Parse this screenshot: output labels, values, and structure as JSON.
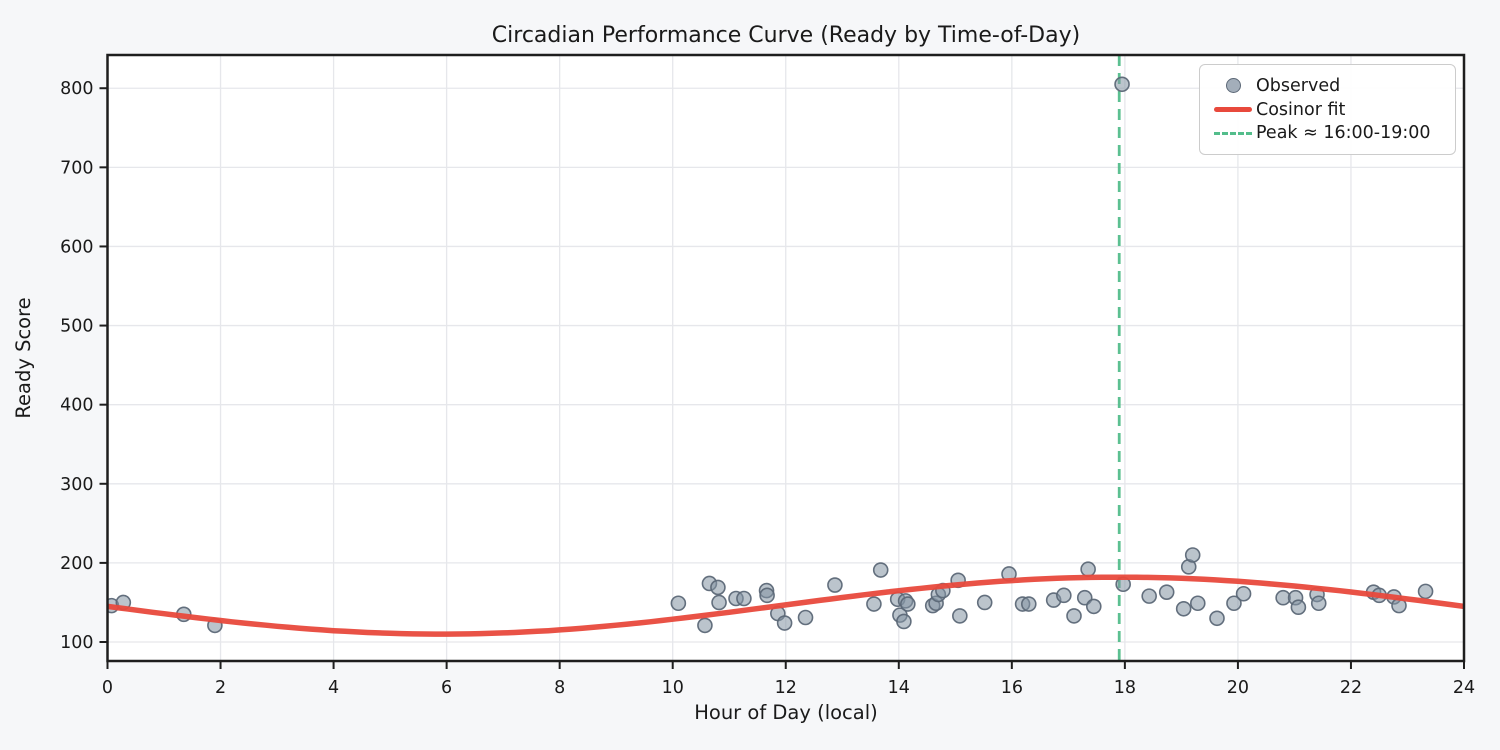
{
  "window": {
    "kind": "matplotlib-style figure",
    "figure_bg": "#f6f7f9",
    "axes_bg": "#ffffff"
  },
  "colors": {
    "scatter_fill": "#8493a3",
    "scatter_edge": "#5c6877",
    "fit_line": "#e8493c",
    "peak_line": "#53bd8b",
    "grid": "#e6e7eb",
    "spine": "#1e1e1e",
    "text": "#1a1a1a",
    "legend_border": "#cccccc"
  },
  "chart_data": {
    "type": "scatter",
    "title": "Circadian Performance Curve (Ready by Time-of-Day)",
    "xlabel": "Hour of Day (local)",
    "ylabel": "Ready Score",
    "xlim": [
      0,
      24
    ],
    "ylim": [
      76,
      842
    ],
    "xticks": [
      0,
      2,
      4,
      6,
      8,
      10,
      12,
      14,
      16,
      18,
      20,
      22,
      24
    ],
    "yticks": [
      100,
      200,
      300,
      400,
      500,
      600,
      700,
      800
    ],
    "grid": true,
    "legend_position": "upper right",
    "series": [
      {
        "name": "Observed",
        "type": "scatter",
        "marker": "circle",
        "points": [
          [
            0.07,
            146
          ],
          [
            0.28,
            150
          ],
          [
            1.35,
            135
          ],
          [
            1.9,
            121
          ],
          [
            10.1,
            149
          ],
          [
            10.57,
            121
          ],
          [
            10.65,
            174
          ],
          [
            10.8,
            169
          ],
          [
            10.82,
            150
          ],
          [
            11.12,
            155
          ],
          [
            11.26,
            155
          ],
          [
            11.66,
            165
          ],
          [
            11.67,
            159
          ],
          [
            11.86,
            136
          ],
          [
            11.98,
            124
          ],
          [
            12.35,
            131
          ],
          [
            12.87,
            172
          ],
          [
            13.56,
            148
          ],
          [
            13.68,
            191
          ],
          [
            13.98,
            154
          ],
          [
            14.02,
            134
          ],
          [
            14.09,
            126
          ],
          [
            14.12,
            152
          ],
          [
            14.16,
            148
          ],
          [
            14.6,
            146
          ],
          [
            14.66,
            149
          ],
          [
            14.7,
            160
          ],
          [
            14.78,
            165
          ],
          [
            15.05,
            178
          ],
          [
            15.08,
            133
          ],
          [
            15.52,
            150
          ],
          [
            15.95,
            186
          ],
          [
            16.19,
            148
          ],
          [
            16.3,
            148
          ],
          [
            16.74,
            153
          ],
          [
            16.92,
            159
          ],
          [
            17.1,
            133
          ],
          [
            17.29,
            156
          ],
          [
            17.35,
            192
          ],
          [
            17.45,
            145
          ],
          [
            17.95,
            805
          ],
          [
            17.97,
            173
          ],
          [
            18.43,
            158
          ],
          [
            18.74,
            163
          ],
          [
            19.04,
            142
          ],
          [
            19.13,
            195
          ],
          [
            19.2,
            210
          ],
          [
            19.29,
            149
          ],
          [
            19.63,
            130
          ],
          [
            19.93,
            149
          ],
          [
            20.1,
            161
          ],
          [
            20.8,
            156
          ],
          [
            21.02,
            156
          ],
          [
            21.07,
            144
          ],
          [
            21.4,
            160
          ],
          [
            21.43,
            149
          ],
          [
            22.4,
            163
          ],
          [
            22.5,
            159
          ],
          [
            22.76,
            157
          ],
          [
            22.85,
            146
          ],
          [
            23.32,
            164
          ]
        ]
      },
      {
        "name": "Cosinor fit",
        "type": "line",
        "model": {
          "mesor": 146,
          "amplitude": 36,
          "peak_hour": 17.9,
          "period": 24
        }
      },
      {
        "name": "Peak ≈ 16:00-19:00",
        "type": "vline",
        "x": 17.9,
        "style": "dashed"
      }
    ]
  }
}
